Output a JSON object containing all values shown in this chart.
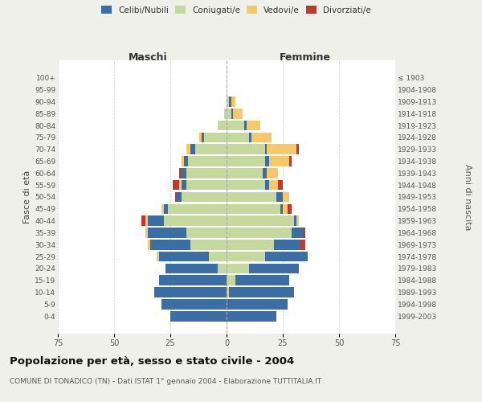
{
  "age_groups": [
    "0-4",
    "5-9",
    "10-14",
    "15-19",
    "20-24",
    "25-29",
    "30-34",
    "35-39",
    "40-44",
    "45-49",
    "50-54",
    "55-59",
    "60-64",
    "65-69",
    "70-74",
    "75-79",
    "80-84",
    "85-89",
    "90-94",
    "95-99",
    "100+"
  ],
  "birth_years": [
    "1999-2003",
    "1994-1998",
    "1989-1993",
    "1984-1988",
    "1979-1983",
    "1974-1978",
    "1969-1973",
    "1964-1968",
    "1959-1963",
    "1954-1958",
    "1949-1953",
    "1944-1948",
    "1939-1943",
    "1934-1938",
    "1929-1933",
    "1924-1928",
    "1919-1923",
    "1914-1918",
    "1909-1913",
    "1904-1908",
    "≤ 1903"
  ],
  "males": {
    "celibi": [
      25,
      29,
      32,
      30,
      23,
      22,
      18,
      17,
      7,
      2,
      2,
      2,
      2,
      2,
      2,
      1,
      0,
      0,
      0,
      0,
      0
    ],
    "coniugati": [
      0,
      0,
      0,
      0,
      4,
      8,
      16,
      18,
      28,
      26,
      20,
      18,
      18,
      17,
      14,
      10,
      4,
      1,
      0,
      0,
      0
    ],
    "vedovi": [
      0,
      0,
      0,
      0,
      0,
      1,
      1,
      1,
      1,
      1,
      0,
      1,
      0,
      1,
      2,
      1,
      0,
      0,
      0,
      0,
      0
    ],
    "divorziati": [
      0,
      0,
      0,
      0,
      0,
      0,
      0,
      0,
      2,
      0,
      1,
      3,
      1,
      0,
      0,
      0,
      0,
      0,
      0,
      0,
      0
    ]
  },
  "females": {
    "nubili": [
      22,
      27,
      29,
      24,
      22,
      19,
      12,
      5,
      1,
      1,
      3,
      2,
      2,
      2,
      1,
      1,
      1,
      1,
      1,
      0,
      0
    ],
    "coniugate": [
      0,
      0,
      1,
      4,
      10,
      17,
      21,
      29,
      30,
      24,
      22,
      17,
      16,
      17,
      17,
      10,
      8,
      2,
      1,
      0,
      0
    ],
    "vedove": [
      0,
      0,
      0,
      0,
      0,
      0,
      0,
      0,
      1,
      2,
      3,
      4,
      5,
      9,
      13,
      9,
      6,
      4,
      2,
      0,
      0
    ],
    "divorziate": [
      0,
      0,
      0,
      0,
      0,
      0,
      2,
      1,
      0,
      2,
      0,
      2,
      0,
      1,
      1,
      0,
      0,
      0,
      0,
      0,
      0
    ]
  },
  "colors": {
    "celibi": "#3a6ea5",
    "coniugati": "#c5d89d",
    "vedovi": "#f5c96a",
    "divorziati": "#c0392b"
  },
  "xlim": 75,
  "title": "Popolazione per età, sesso e stato civile - 2004",
  "subtitle": "COMUNE DI TONADICO (TN) - Dati ISTAT 1° gennaio 2004 - Elaborazione TUTTITALIA.IT",
  "ylabel_left": "Fasce di età",
  "ylabel_right": "Anni di nascita",
  "xlabel_left": "Maschi",
  "xlabel_right": "Femmine",
  "bg_color": "#f0f0eb",
  "plot_bg": "#ffffff"
}
